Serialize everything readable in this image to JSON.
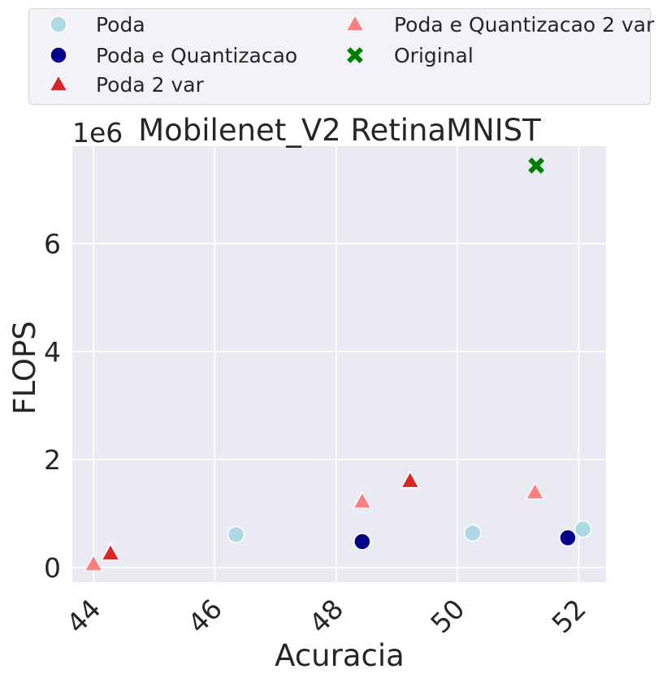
{
  "chart_data": {
    "type": "scatter",
    "title": "Mobilenet_V2 RetinaMNIST",
    "xlabel": "Acuracia",
    "ylabel": "FLOPS",
    "y_offset_label": "1e6",
    "xlim": [
      43.65,
      52.45
    ],
    "ylim": [
      -0.27,
      7.8
    ],
    "y_scale_factor": 1000000,
    "x_ticks": [
      44,
      46,
      48,
      50,
      52
    ],
    "y_ticks": [
      0,
      2,
      4,
      6
    ],
    "grid": true,
    "legend_position": "top",
    "series": [
      {
        "name": "Poda",
        "marker": "circle",
        "color": "#add8e6",
        "points": [
          {
            "x": 46.35,
            "y": 0.61
          },
          {
            "x": 50.25,
            "y": 0.64
          },
          {
            "x": 52.07,
            "y": 0.71
          }
        ]
      },
      {
        "name": "Poda e Quantizacao",
        "marker": "circle",
        "color": "#00008b",
        "points": [
          {
            "x": 48.43,
            "y": 0.48
          },
          {
            "x": 51.82,
            "y": 0.55
          }
        ]
      },
      {
        "name": "Poda 2 var",
        "marker": "triangle",
        "color": "#d62728",
        "points": [
          {
            "x": 44.28,
            "y": 0.26
          },
          {
            "x": 49.22,
            "y": 1.6
          }
        ]
      },
      {
        "name": "Poda e Quantizacao 2 var",
        "marker": "triangle",
        "color": "#ff7f7f",
        "points": [
          {
            "x": 44.0,
            "y": 0.06
          },
          {
            "x": 48.43,
            "y": 1.22
          },
          {
            "x": 51.28,
            "y": 1.39
          }
        ]
      },
      {
        "name": "Original",
        "marker": "x",
        "color": "#008000",
        "points": [
          {
            "x": 51.3,
            "y": 7.44
          }
        ]
      }
    ]
  }
}
